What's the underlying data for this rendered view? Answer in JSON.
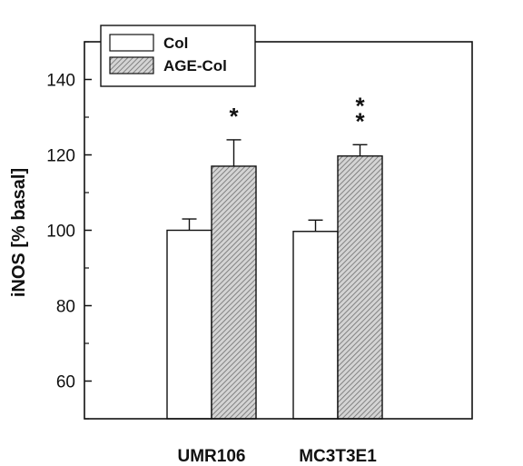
{
  "chart_data": {
    "type": "bar",
    "categories": [
      "UMR106",
      "MC3T3E1"
    ],
    "series": [
      {
        "name": "Col",
        "values": [
          100,
          99.7
        ],
        "errors": [
          3,
          3
        ],
        "fill": "#ffffff"
      },
      {
        "name": "AGE-Col",
        "values": [
          117,
          119.7
        ],
        "errors": [
          7,
          3
        ],
        "fill": "hatched"
      }
    ],
    "significance": [
      "*",
      "**"
    ],
    "ylabel": "iNOS [% basal]",
    "xlabel": "",
    "yticks": [
      60,
      80,
      100,
      120,
      140
    ],
    "ylim": [
      50,
      150
    ],
    "grid": false,
    "legend_position": "top-left",
    "error_bars": "one-sided upward"
  },
  "colors": {
    "axis": "#111111",
    "hatch": "#777777",
    "background": "#ffffff"
  }
}
